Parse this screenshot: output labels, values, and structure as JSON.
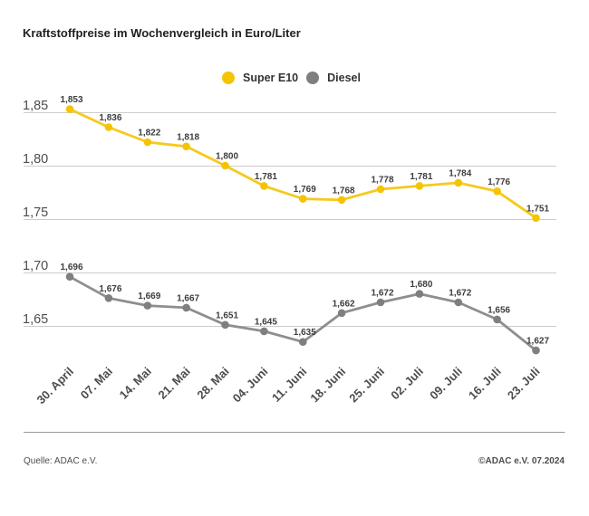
{
  "title": "Kraftstoffpreise im Wochenvergleich in Euro/Liter",
  "legend": {
    "items": [
      {
        "label": "Super E10",
        "color": "#f5c400",
        "icon": "circle"
      },
      {
        "label": "Diesel",
        "color": "#7f7f7f",
        "icon": "circle"
      }
    ]
  },
  "footer": {
    "source": "Quelle: ADAC e.V.",
    "copyright": "©ADAC e.V. 07.2024"
  },
  "colors": {
    "super_e10_marker": "#f5c400",
    "super_e10_line": "#f6c91e",
    "diesel_marker": "#7f7f7f",
    "diesel_line": "#8e8e8e",
    "gridline": "#cccccc",
    "separator": "#999999",
    "axis_text": "#4d4d4d",
    "value_label_text": "#3d3d3d"
  },
  "chart_data": {
    "type": "line",
    "title": "Kraftstoffpreise im Wochenvergleich in Euro/Liter",
    "categories": [
      "30. April",
      "07. Mai",
      "14. Mai",
      "21. Mai",
      "28. Mai",
      "04. Juni",
      "11. Juni",
      "18. Juni",
      "25. Juni",
      "02. Juli",
      "09. Juli",
      "16. Juli",
      "23. Juli"
    ],
    "series": [
      {
        "name": "Super E10",
        "color": "#f5c400",
        "values": [
          1.853,
          1.836,
          1.822,
          1.818,
          1.8,
          1.781,
          1.769,
          1.768,
          1.778,
          1.781,
          1.784,
          1.776,
          1.751
        ],
        "labels": [
          "1,853",
          "1,836",
          "1,822",
          "1,818",
          "1,800",
          "1,781",
          "1,769",
          "1,768",
          "1,778",
          "1,781",
          "1,784",
          "1,776",
          "1,751"
        ]
      },
      {
        "name": "Diesel",
        "color": "#7f7f7f",
        "values": [
          1.696,
          1.676,
          1.669,
          1.667,
          1.651,
          1.645,
          1.635,
          1.662,
          1.672,
          1.68,
          1.672,
          1.656,
          1.627
        ],
        "labels": [
          "1,696",
          "1,676",
          "1,669",
          "1,667",
          "1,651",
          "1,645",
          "1,635",
          "1,662",
          "1,672",
          "1,680",
          "1,672",
          "1,656",
          "1,627"
        ]
      }
    ],
    "yticks": [
      1.85,
      1.8,
      1.75,
      1.7,
      1.65
    ],
    "ytick_labels": [
      "1,85",
      "1,80",
      "1,75",
      "1,70",
      "1,65"
    ],
    "ylim": [
      1.615,
      1.86
    ],
    "xlabel": "",
    "ylabel": "",
    "grid": "horizontal",
    "legend_position": "top-center",
    "value_labels": true,
    "number_format": "de-comma"
  }
}
